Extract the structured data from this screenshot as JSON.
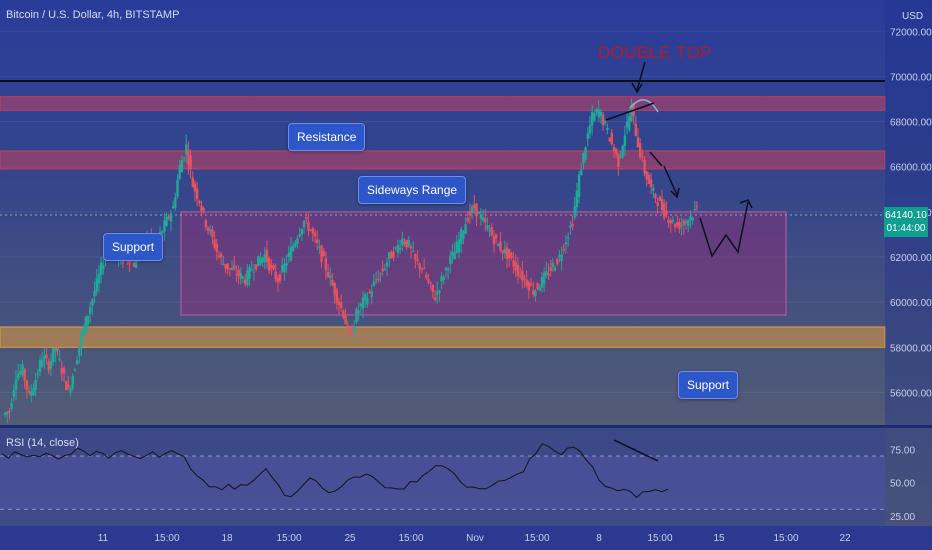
{
  "header": {
    "title": "Bitcoin / U.S. Dollar, 4h, BITSTAMP",
    "currency": "USD"
  },
  "rsi_pane": {
    "title": "RSI (14, close)"
  },
  "price_tag": {
    "price": "64140.10",
    "countdown": "01:44:00"
  },
  "annotations": {
    "support_left": "Support",
    "resistance": "Resistance",
    "sideways_range": "Sideways Range",
    "support_right": "Support",
    "double_top": "DOUBLE TOP"
  },
  "colors": {
    "up_candle": "#22a89a",
    "down_candle": "#e5535f",
    "resistance_zone": "#c1415f",
    "support_zone": "#e89a3c",
    "range_box": "#942c78"
  },
  "chart_data": {
    "type": "candlestick",
    "title": "Bitcoin / U.S. Dollar, 4h, BITSTAMP",
    "price_axis": {
      "labels": [
        "72000.00",
        "70000.00",
        "68000.00",
        "66000.00",
        "64000.00",
        "62000.00",
        "60000.00",
        "58000.00",
        "56000.00"
      ],
      "ylim": [
        54500,
        73000
      ]
    },
    "time_axis": {
      "labels": [
        "11",
        "15:00",
        "18",
        "15:00",
        "25",
        "15:00",
        "Nov",
        "15:00",
        "8",
        "15:00",
        "15",
        "15:00",
        "22"
      ]
    },
    "resistance_line": 70000,
    "zones": [
      {
        "kind": "resistance",
        "from": 68500,
        "to": 69100
      },
      {
        "kind": "resistance",
        "from": 65900,
        "to": 66700
      },
      {
        "kind": "support",
        "from": 58000,
        "to": 58900
      }
    ],
    "sideways_range": {
      "from": 59800,
      "to": 64200
    },
    "last_price": 64140.1,
    "price_path": [
      [
        55000,
        55200,
        56800,
        57000,
        55800,
        56600,
        57600,
        57200,
        58000,
        57000,
        56000,
        57200,
        58500,
        59500,
        60500,
        61500,
        62600,
        62200,
        61800,
        62000,
        61700,
        62200,
        62800,
        62500,
        63000,
        63600,
        64200,
        66000,
        66900,
        65200,
        64500,
        63500,
        62800,
        62000,
        61600,
        61400,
        61200,
        61000,
        61500,
        61800,
        62100,
        61400,
        61000,
        61600,
        62300,
        63000,
        63600,
        63200,
        62500,
        61800,
        61000,
        60200,
        59500,
        58400,
        59500,
        60000,
        60400,
        61000,
        61400,
        62000,
        62300,
        62800,
        62500,
        61800,
        61500,
        60800,
        60200,
        61000,
        61700,
        62200,
        63000,
        63800,
        64200,
        63700,
        63300,
        62800,
        62400,
        62100,
        61700,
        61200,
        60900,
        60500,
        60800,
        61200,
        61600,
        62000,
        62800,
        63600,
        65500,
        67000,
        68200,
        68500,
        67800,
        67000,
        66200,
        67500,
        68600,
        67000,
        65800,
        65000,
        64500,
        64000,
        63600,
        63400,
        63500,
        63800,
        64140
      ]
    ],
    "rsi": {
      "labels": [
        "75.00",
        "50.00",
        "25.00"
      ],
      "levels": [
        70,
        30
      ],
      "ylim": [
        22,
        82
      ],
      "values": [
        72,
        70,
        74,
        71,
        69,
        72,
        70,
        73,
        71,
        68,
        70,
        72,
        74,
        72,
        70,
        73,
        71,
        69,
        72,
        74,
        73,
        70,
        68,
        71,
        73,
        70,
        72,
        75,
        73,
        68,
        62,
        55,
        50,
        47,
        45,
        46,
        48,
        44,
        47,
        49,
        52,
        56,
        60,
        55,
        48,
        42,
        39,
        44,
        50,
        55,
        52,
        47,
        44,
        42,
        46,
        50,
        54,
        56,
        58,
        54,
        50,
        48,
        46,
        44,
        47,
        50,
        52,
        55,
        58,
        61,
        64,
        60,
        56,
        52,
        48,
        46,
        44,
        45,
        48,
        50,
        52,
        54,
        57,
        60,
        66,
        74,
        78,
        77,
        75,
        72,
        76,
        78,
        73,
        68,
        62,
        52,
        48,
        46,
        45,
        47,
        43,
        40,
        42,
        44,
        43,
        45,
        47
      ]
    }
  }
}
